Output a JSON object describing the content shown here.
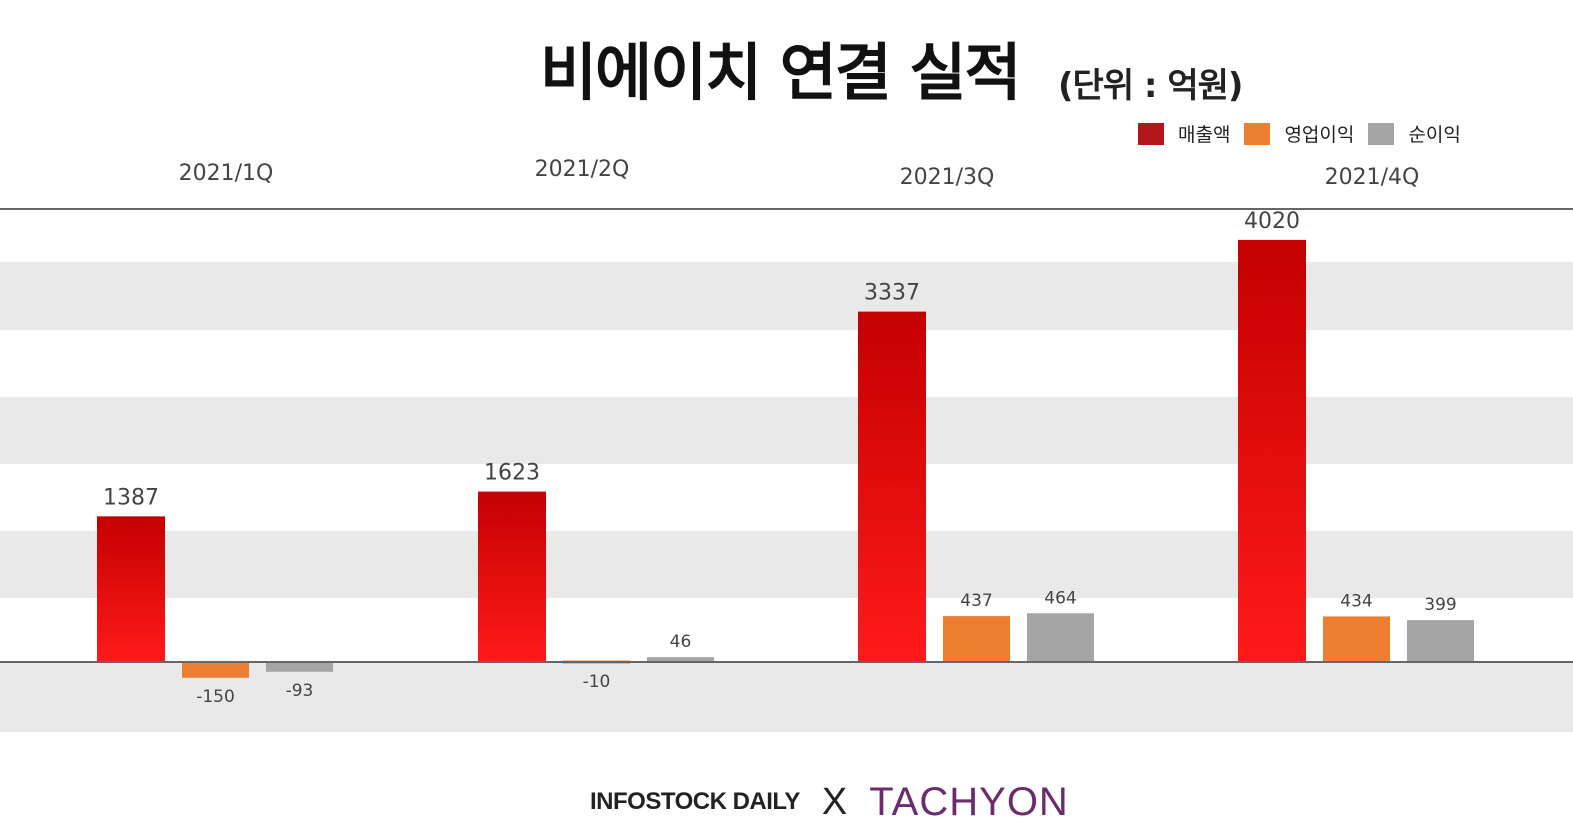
{
  "title": "비에이치 연결 실적",
  "unit": "(단위 : 억원)",
  "colors": {
    "revenue_top": "#c40000",
    "revenue_bottom": "#ff1a1a",
    "operating": "#ed7d31",
    "net": "#a5a5a5",
    "band": "#e9e9e9",
    "axis": "#666666"
  },
  "footer": {
    "brand1": "INFOSTOCK DAILY",
    "separator": "X",
    "brand2": "TACHYON"
  },
  "chart_data": {
    "type": "bar",
    "categories": [
      "2021/1Q",
      "2021/2Q",
      "2021/3Q",
      "2021/4Q"
    ],
    "series": [
      {
        "name": "매출액",
        "values": [
          1387,
          1623,
          3337,
          4020
        ],
        "labels": [
          "1387",
          "1623",
          "3337",
          "4020"
        ]
      },
      {
        "name": "영업이익",
        "values": [
          -150,
          -10,
          437,
          434
        ],
        "labels": [
          "-150",
          "-10",
          "437",
          "434"
        ]
      },
      {
        "name": "순이익",
        "values": [
          -93,
          46,
          464,
          399
        ],
        "labels": [
          "-93",
          "46",
          "464",
          "399"
        ]
      }
    ],
    "legend_position": "top-right",
    "ylim": [
      -670,
      4340
    ],
    "grid": "horizontal bands"
  }
}
